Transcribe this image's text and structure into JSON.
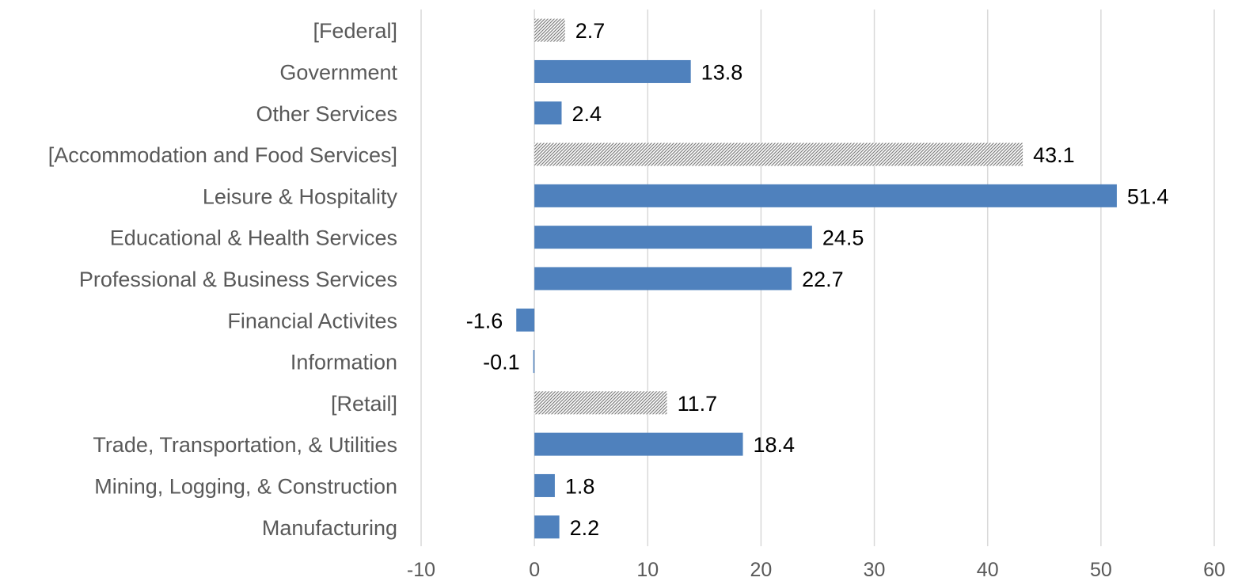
{
  "chart_data": {
    "type": "bar",
    "orientation": "horizontal",
    "categories": [
      "[Federal]",
      "Government",
      "Other Services",
      "[Accommodation and Food Services]",
      "Leisure & Hospitality",
      "Educational  & Health Services",
      "Professional & Business Services",
      "Financial Activites",
      "Information",
      "[Retail]",
      "Trade, Transportation, & Utilities",
      "Mining, Logging, & Construction",
      "Manufacturing"
    ],
    "values": [
      2.7,
      13.8,
      2.4,
      43.1,
      51.4,
      24.5,
      22.7,
      -1.6,
      -0.1,
      11.7,
      18.4,
      1.8,
      2.2
    ],
    "value_labels": [
      "2.7",
      "13.8",
      "2.4",
      "43.1",
      "51.4",
      "24.5",
      "22.7",
      "-1.6",
      "-0.1",
      "11.7",
      "18.4",
      "1.8",
      "2.2"
    ],
    "bar_style": [
      "hatched",
      "solid",
      "solid",
      "hatched",
      "solid",
      "solid",
      "solid",
      "solid",
      "solid",
      "hatched",
      "solid",
      "solid",
      "solid"
    ],
    "xlim": [
      -10,
      60
    ],
    "xticks": [
      -10,
      0,
      10,
      20,
      30,
      40,
      50,
      60
    ],
    "xtick_labels": [
      "-10",
      "0",
      "10",
      "20",
      "30",
      "40",
      "50",
      "60"
    ],
    "grid": true,
    "legend": "none",
    "colors": {
      "bar": "#4f81bd",
      "hatch": "#7f7f7f",
      "grid": "#d9d9d9",
      "axis_text": "#595959",
      "data_label": "#000000"
    }
  }
}
